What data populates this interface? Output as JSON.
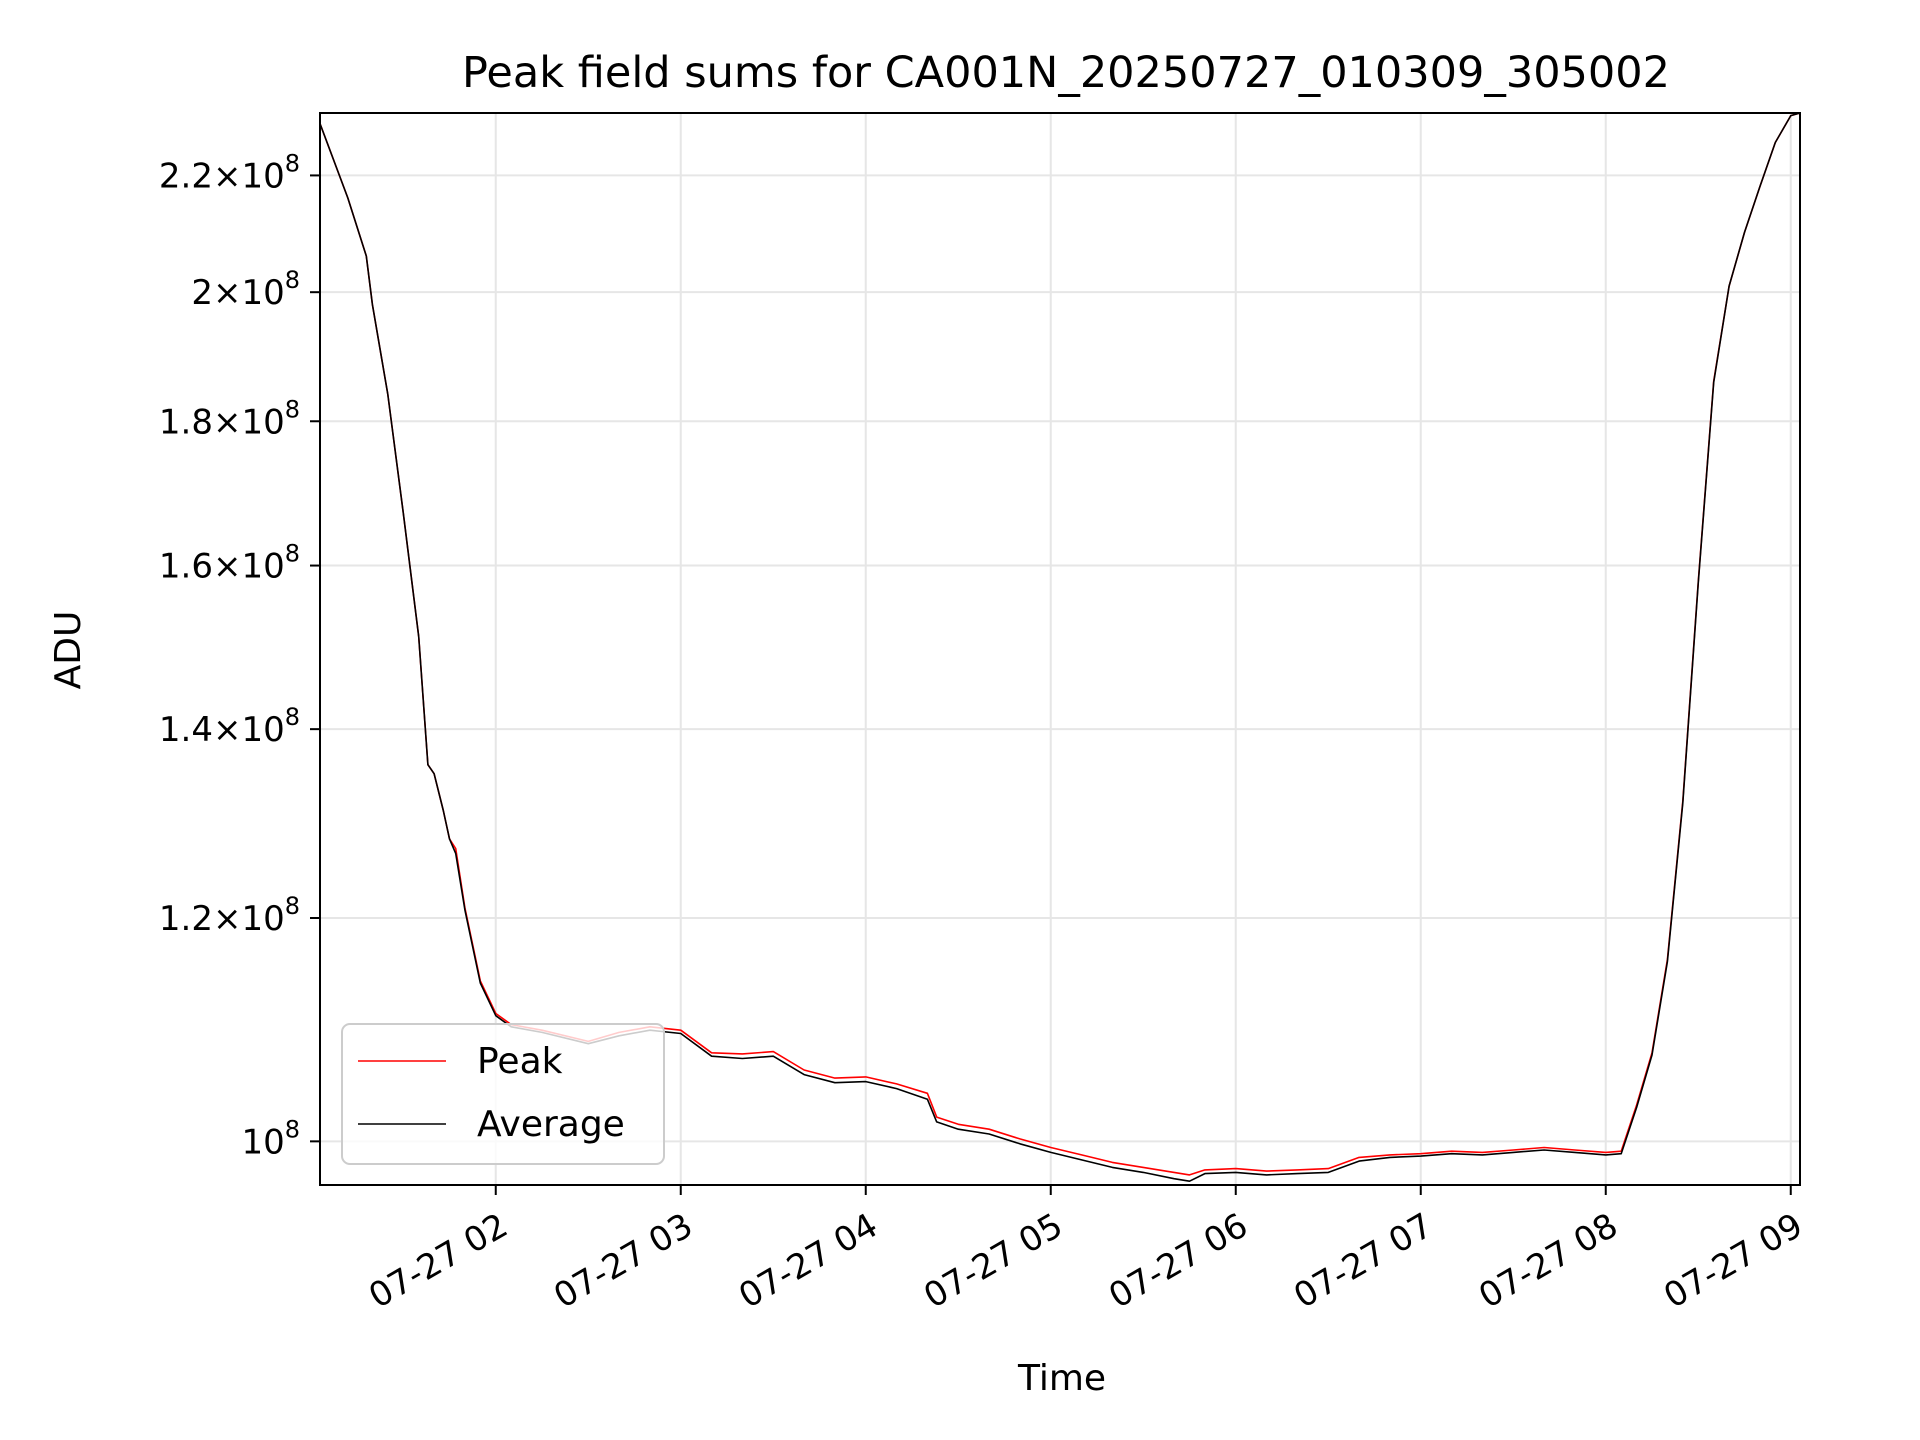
{
  "chart_data": {
    "type": "line",
    "title": "Peak field sums for CA001N_20250727_010309_305002",
    "xlabel": "Time",
    "ylabel": "ADU",
    "y_scale": "log",
    "grid": true,
    "legend_position": "lower-left",
    "xlim": [
      "2025-07-27 01:03",
      "2025-07-27 09:03"
    ],
    "ylim": [
      96500000,
      231500000
    ],
    "x_ticks": [
      {
        "value": "2025-07-27 02:00",
        "label": "07-27 02"
      },
      {
        "value": "2025-07-27 03:00",
        "label": "07-27 03"
      },
      {
        "value": "2025-07-27 04:00",
        "label": "07-27 04"
      },
      {
        "value": "2025-07-27 05:00",
        "label": "07-27 05"
      },
      {
        "value": "2025-07-27 06:00",
        "label": "07-27 06"
      },
      {
        "value": "2025-07-27 07:00",
        "label": "07-27 07"
      },
      {
        "value": "2025-07-27 08:00",
        "label": "07-27 08"
      },
      {
        "value": "2025-07-27 09:00",
        "label": "07-27 09"
      }
    ],
    "y_ticks": [
      {
        "value": 100000000,
        "mantissa": "",
        "exponent": "8"
      },
      {
        "value": 120000000,
        "mantissa": "1.2",
        "exponent": "8"
      },
      {
        "value": 140000000,
        "mantissa": "1.4",
        "exponent": "8"
      },
      {
        "value": 160000000,
        "mantissa": "1.6",
        "exponent": "8"
      },
      {
        "value": 180000000,
        "mantissa": "1.8",
        "exponent": "8"
      },
      {
        "value": 200000000,
        "mantissa": "2",
        "exponent": "8"
      },
      {
        "value": 220000000,
        "mantissa": "2.2",
        "exponent": "8"
      }
    ],
    "series": [
      {
        "name": "Peak",
        "color": "#ff0000",
        "x": [
          "2025-07-27 01:03",
          "2025-07-27 01:12",
          "2025-07-27 01:18",
          "2025-07-27 01:20",
          "2025-07-27 01:25",
          "2025-07-27 01:30",
          "2025-07-27 01:35",
          "2025-07-27 01:38",
          "2025-07-27 01:40",
          "2025-07-27 01:43",
          "2025-07-27 01:45",
          "2025-07-27 01:47",
          "2025-07-27 01:50",
          "2025-07-27 01:55",
          "2025-07-27 02:00",
          "2025-07-27 02:05",
          "2025-07-27 02:15",
          "2025-07-27 02:30",
          "2025-07-27 02:40",
          "2025-07-27 02:50",
          "2025-07-27 03:00",
          "2025-07-27 03:10",
          "2025-07-27 03:20",
          "2025-07-27 03:30",
          "2025-07-27 03:40",
          "2025-07-27 03:50",
          "2025-07-27 04:00",
          "2025-07-27 04:10",
          "2025-07-27 04:20",
          "2025-07-27 04:23",
          "2025-07-27 04:30",
          "2025-07-27 04:40",
          "2025-07-27 04:50",
          "2025-07-27 05:00",
          "2025-07-27 05:10",
          "2025-07-27 05:20",
          "2025-07-27 05:30",
          "2025-07-27 05:40",
          "2025-07-27 05:45",
          "2025-07-27 05:50",
          "2025-07-27 06:00",
          "2025-07-27 06:10",
          "2025-07-27 06:20",
          "2025-07-27 06:30",
          "2025-07-27 06:40",
          "2025-07-27 06:50",
          "2025-07-27 07:00",
          "2025-07-27 07:10",
          "2025-07-27 07:20",
          "2025-07-27 07:30",
          "2025-07-27 07:40",
          "2025-07-27 07:50",
          "2025-07-27 08:00",
          "2025-07-27 08:05",
          "2025-07-27 08:10",
          "2025-07-27 08:15",
          "2025-07-27 08:20",
          "2025-07-27 08:25",
          "2025-07-27 08:30",
          "2025-07-27 08:35",
          "2025-07-27 08:40",
          "2025-07-27 08:45",
          "2025-07-27 08:50",
          "2025-07-27 08:55",
          "2025-07-27 09:00",
          "2025-07-27 09:03"
        ],
        "values": [
          229500000,
          216000000,
          206000000,
          198000000,
          184000000,
          167000000,
          151000000,
          136000000,
          135000000,
          131000000,
          128000000,
          127000000,
          121000000,
          114000000,
          111000000,
          110000000,
          109500000,
          108500000,
          109300000,
          109800000,
          109500000,
          107500000,
          107400000,
          107600000,
          106000000,
          105300000,
          105400000,
          104800000,
          104000000,
          102000000,
          101400000,
          101000000,
          100200000,
          99500000,
          98900000,
          98300000,
          97900000,
          97500000,
          97300000,
          97700000,
          97800000,
          97600000,
          97700000,
          97800000,
          98700000,
          98900000,
          99000000,
          99200000,
          99100000,
          99300000,
          99500000,
          99300000,
          99100000,
          99200000,
          103000000,
          107500000,
          116000000,
          132000000,
          158000000,
          186000000,
          201000000,
          210000000,
          218000000,
          226000000,
          231000000,
          231500000
        ]
      },
      {
        "name": "Average",
        "color": "#000000",
        "x": [
          "2025-07-27 01:03",
          "2025-07-27 01:12",
          "2025-07-27 01:18",
          "2025-07-27 01:20",
          "2025-07-27 01:25",
          "2025-07-27 01:30",
          "2025-07-27 01:35",
          "2025-07-27 01:38",
          "2025-07-27 01:40",
          "2025-07-27 01:43",
          "2025-07-27 01:45",
          "2025-07-27 01:47",
          "2025-07-27 01:50",
          "2025-07-27 01:55",
          "2025-07-27 02:00",
          "2025-07-27 02:05",
          "2025-07-27 02:15",
          "2025-07-27 02:30",
          "2025-07-27 02:40",
          "2025-07-27 02:50",
          "2025-07-27 03:00",
          "2025-07-27 03:10",
          "2025-07-27 03:20",
          "2025-07-27 03:30",
          "2025-07-27 03:40",
          "2025-07-27 03:50",
          "2025-07-27 04:00",
          "2025-07-27 04:10",
          "2025-07-27 04:20",
          "2025-07-27 04:23",
          "2025-07-27 04:30",
          "2025-07-27 04:40",
          "2025-07-27 04:50",
          "2025-07-27 05:00",
          "2025-07-27 05:10",
          "2025-07-27 05:20",
          "2025-07-27 05:30",
          "2025-07-27 05:40",
          "2025-07-27 05:45",
          "2025-07-27 05:50",
          "2025-07-27 06:00",
          "2025-07-27 06:10",
          "2025-07-27 06:20",
          "2025-07-27 06:30",
          "2025-07-27 06:40",
          "2025-07-27 06:50",
          "2025-07-27 07:00",
          "2025-07-27 07:10",
          "2025-07-27 07:20",
          "2025-07-27 07:30",
          "2025-07-27 07:40",
          "2025-07-27 07:50",
          "2025-07-27 08:00",
          "2025-07-27 08:05",
          "2025-07-27 08:10",
          "2025-07-27 08:15",
          "2025-07-27 08:20",
          "2025-07-27 08:25",
          "2025-07-27 08:30",
          "2025-07-27 08:35",
          "2025-07-27 08:40",
          "2025-07-27 08:45",
          "2025-07-27 08:50",
          "2025-07-27 08:55",
          "2025-07-27 09:00",
          "2025-07-27 09:03"
        ],
        "values": [
          229500000,
          216000000,
          206000000,
          198000000,
          184000000,
          167000000,
          151000000,
          136000000,
          135000000,
          131000000,
          128000000,
          126500000,
          120800000,
          113800000,
          110800000,
          109800000,
          109300000,
          108300000,
          109000000,
          109500000,
          109200000,
          107200000,
          107000000,
          107200000,
          105600000,
          104900000,
          105000000,
          104400000,
          103500000,
          101600000,
          101000000,
          100600000,
          99800000,
          99100000,
          98500000,
          97900000,
          97500000,
          97000000,
          96800000,
          97400000,
          97500000,
          97300000,
          97400000,
          97500000,
          98400000,
          98700000,
          98800000,
          99000000,
          98900000,
          99100000,
          99300000,
          99100000,
          98900000,
          99000000,
          102800000,
          107300000,
          115800000,
          131800000,
          157800000,
          185800000,
          201000000,
          210000000,
          218000000,
          226000000,
          231000000,
          231500000
        ]
      }
    ]
  }
}
